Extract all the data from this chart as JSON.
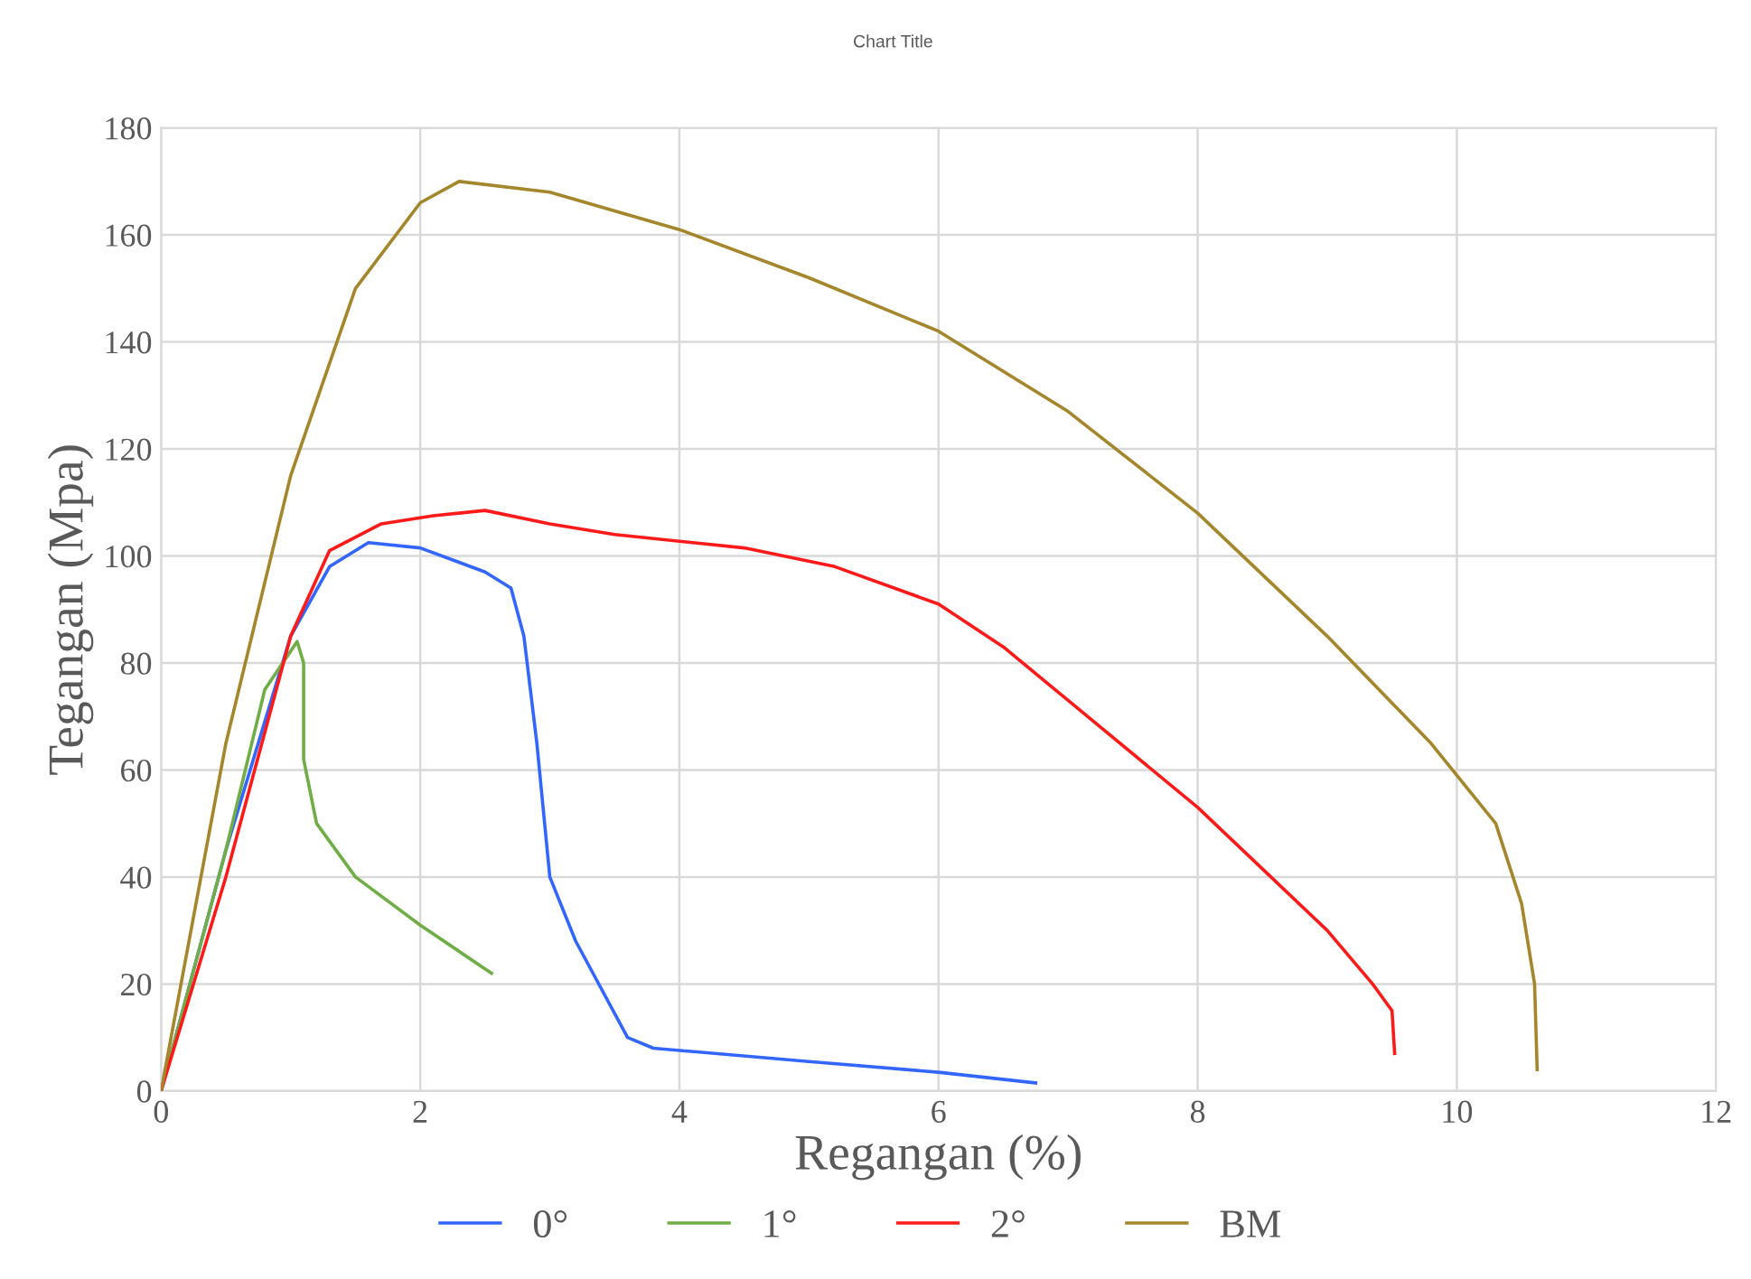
{
  "chart_data": {
    "type": "line",
    "title": "Chart Title",
    "xlabel": "Regangan (%)",
    "ylabel": "Tegangan (Mpa)",
    "xlim": [
      0,
      12
    ],
    "xticks": [
      0,
      2,
      4,
      6,
      8,
      10,
      12
    ],
    "ylim": [
      0,
      180
    ],
    "yticks": [
      0,
      20,
      40,
      60,
      80,
      100,
      120,
      140,
      160,
      180
    ],
    "grid": true,
    "legend": "bottom",
    "marker": "none",
    "line_style": "solid",
    "series": [
      {
        "name": "0°",
        "color": "#3366ff",
        "x": [
          0,
          0.5,
          1,
          1.3,
          1.6,
          2,
          2.5,
          2.7,
          2.8,
          2.9,
          3.0,
          3.2,
          3.6,
          3.8,
          5,
          6,
          6.75
        ],
        "values": [
          0,
          45,
          85,
          98,
          102.5,
          101.5,
          97,
          94,
          85,
          65,
          40,
          28,
          10,
          8,
          5.5,
          3.5,
          1.5
        ]
      },
      {
        "name": "1°",
        "color": "#70ad47",
        "x": [
          0,
          0.5,
          0.8,
          1.05,
          1.1,
          1.1,
          1.2,
          1.5,
          2,
          2.55
        ],
        "values": [
          0,
          45,
          75,
          84,
          80,
          62,
          50,
          40,
          31,
          22
        ]
      },
      {
        "name": "2°",
        "color": "#ff1a1a",
        "x": [
          0,
          0.5,
          1,
          1.3,
          1.7,
          2.1,
          2.5,
          3,
          3.5,
          4.5,
          5.2,
          6,
          6.5,
          7,
          8,
          9,
          9.35,
          9.5,
          9.52
        ],
        "values": [
          0,
          40,
          85,
          101,
          106,
          107.5,
          108.5,
          106,
          104,
          101.5,
          98,
          91,
          83,
          73,
          53,
          30,
          20,
          15,
          7
        ]
      },
      {
        "name": "BM",
        "color": "#a4862c",
        "x": [
          0,
          0.5,
          1,
          1.5,
          2,
          2.3,
          3,
          4,
          5,
          6,
          7,
          8,
          9,
          9.8,
          10.3,
          10.5,
          10.6,
          10.62
        ],
        "values": [
          0,
          65,
          115,
          150,
          166,
          170,
          168,
          161,
          152,
          142,
          127,
          108,
          85,
          65,
          50,
          35,
          20,
          4
        ]
      }
    ]
  }
}
